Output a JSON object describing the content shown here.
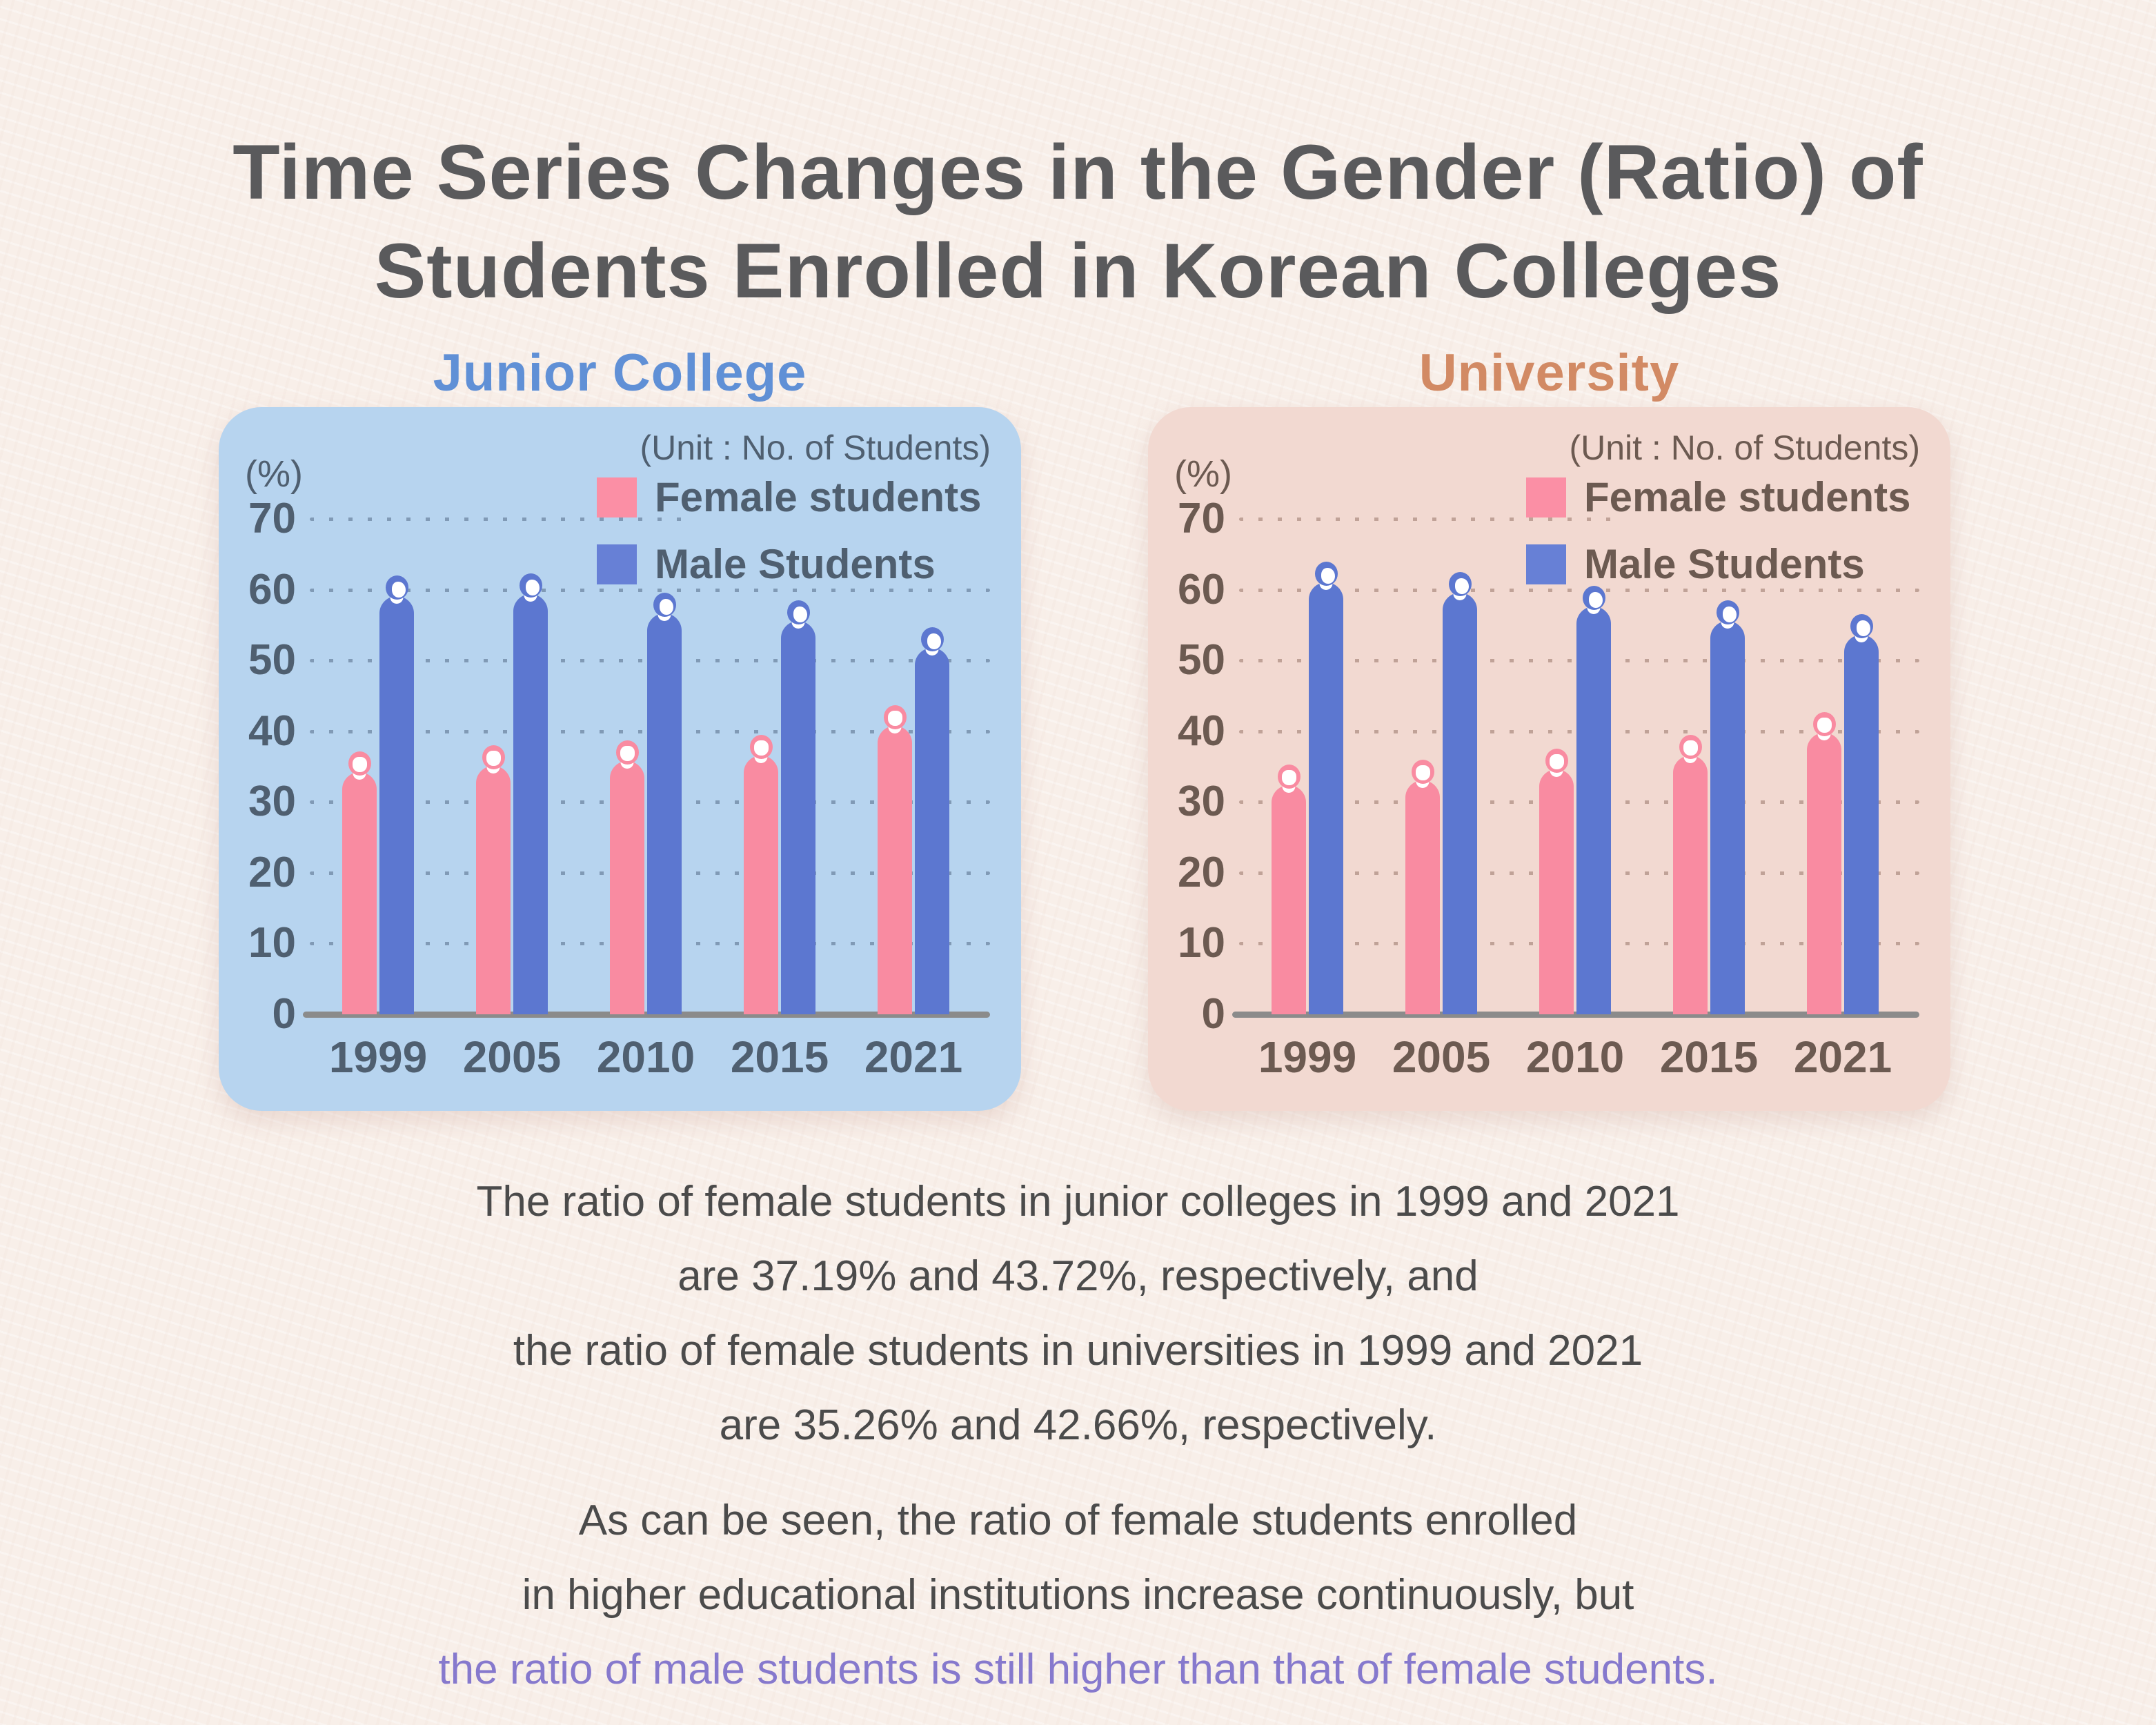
{
  "page": {
    "background": "#F8EFE9"
  },
  "title": {
    "lines": [
      "Time Series Changes in the Gender (Ratio) of",
      "Students Enrolled in Korean Colleges"
    ],
    "color": "#5A5A5C"
  },
  "chart_data": [
    {
      "type": "bar",
      "title": "Junior College",
      "title_color": "#6090D6",
      "panel_bg": "#B7D4EF",
      "text_color": "#4F5F70",
      "grid_dot_color": "rgba(84,106,134,0.55)",
      "axis_line_color": "#8B8B8B",
      "percent_label": "(%)",
      "unit_note": "(Unit : No. of Students)",
      "categories": [
        "1999",
        "2005",
        "2010",
        "2015",
        "2021"
      ],
      "series": [
        {
          "name": "Female students",
          "bar_color": "#F98BA1",
          "swatch_color": "#FB8FA5",
          "values": [
            37.19,
            38.0,
            38.7,
            39.5,
            43.72
          ]
        },
        {
          "name": "Male Students",
          "bar_color": "#5C77D0",
          "swatch_color": "#6780D6",
          "values": [
            62.0,
            62.3,
            59.6,
            58.5,
            54.7
          ]
        }
      ],
      "ylabel": "(%)",
      "ylim": [
        0,
        70
      ],
      "y_ticks": [
        70,
        60,
        50,
        40,
        30,
        20,
        10,
        0
      ],
      "grid": "dotted",
      "legend_position": "top-right"
    },
    {
      "type": "bar",
      "title": "University",
      "title_color": "#D28A64",
      "panel_bg": "#F2D9D1",
      "text_color": "#6C5A51",
      "grid_dot_color": "rgba(150,117,104,0.55)",
      "axis_line_color": "#8B8B8B",
      "percent_label": "(%)",
      "unit_note": "(Unit : No. of Students)",
      "categories": [
        "1999",
        "2005",
        "2010",
        "2015",
        "2021"
      ],
      "series": [
        {
          "name": "Female students",
          "bar_color": "#F98BA1",
          "swatch_color": "#FB8FA5",
          "values": [
            35.26,
            36.0,
            37.5,
            39.5,
            42.66
          ]
        },
        {
          "name": "Male Students",
          "bar_color": "#5C77D0",
          "swatch_color": "#6780D6",
          "values": [
            64.0,
            62.5,
            60.5,
            58.5,
            56.5
          ]
        }
      ],
      "ylabel": "(%)",
      "ylim": [
        0,
        70
      ],
      "y_ticks": [
        70,
        60,
        50,
        40,
        30,
        20,
        10,
        0
      ],
      "grid": "dotted",
      "legend_position": "top-right"
    }
  ],
  "paragraphs": {
    "text_color": "#4B4B4B",
    "highlight_color": "#8679CD",
    "p1_lines": [
      "The ratio of female students in junior colleges in 1999 and 2021",
      "are 37.19% and 43.72%, respectively, and",
      "the ratio of female students in universities in 1999 and 2021",
      "are 35.26% and 42.66%, respectively."
    ],
    "p2_lines": [
      "As can be seen, the ratio of female students enrolled",
      "in higher educational institutions increase continuously, but"
    ],
    "p2_highlight_line": "the ratio of male students is still higher than that of female students."
  }
}
